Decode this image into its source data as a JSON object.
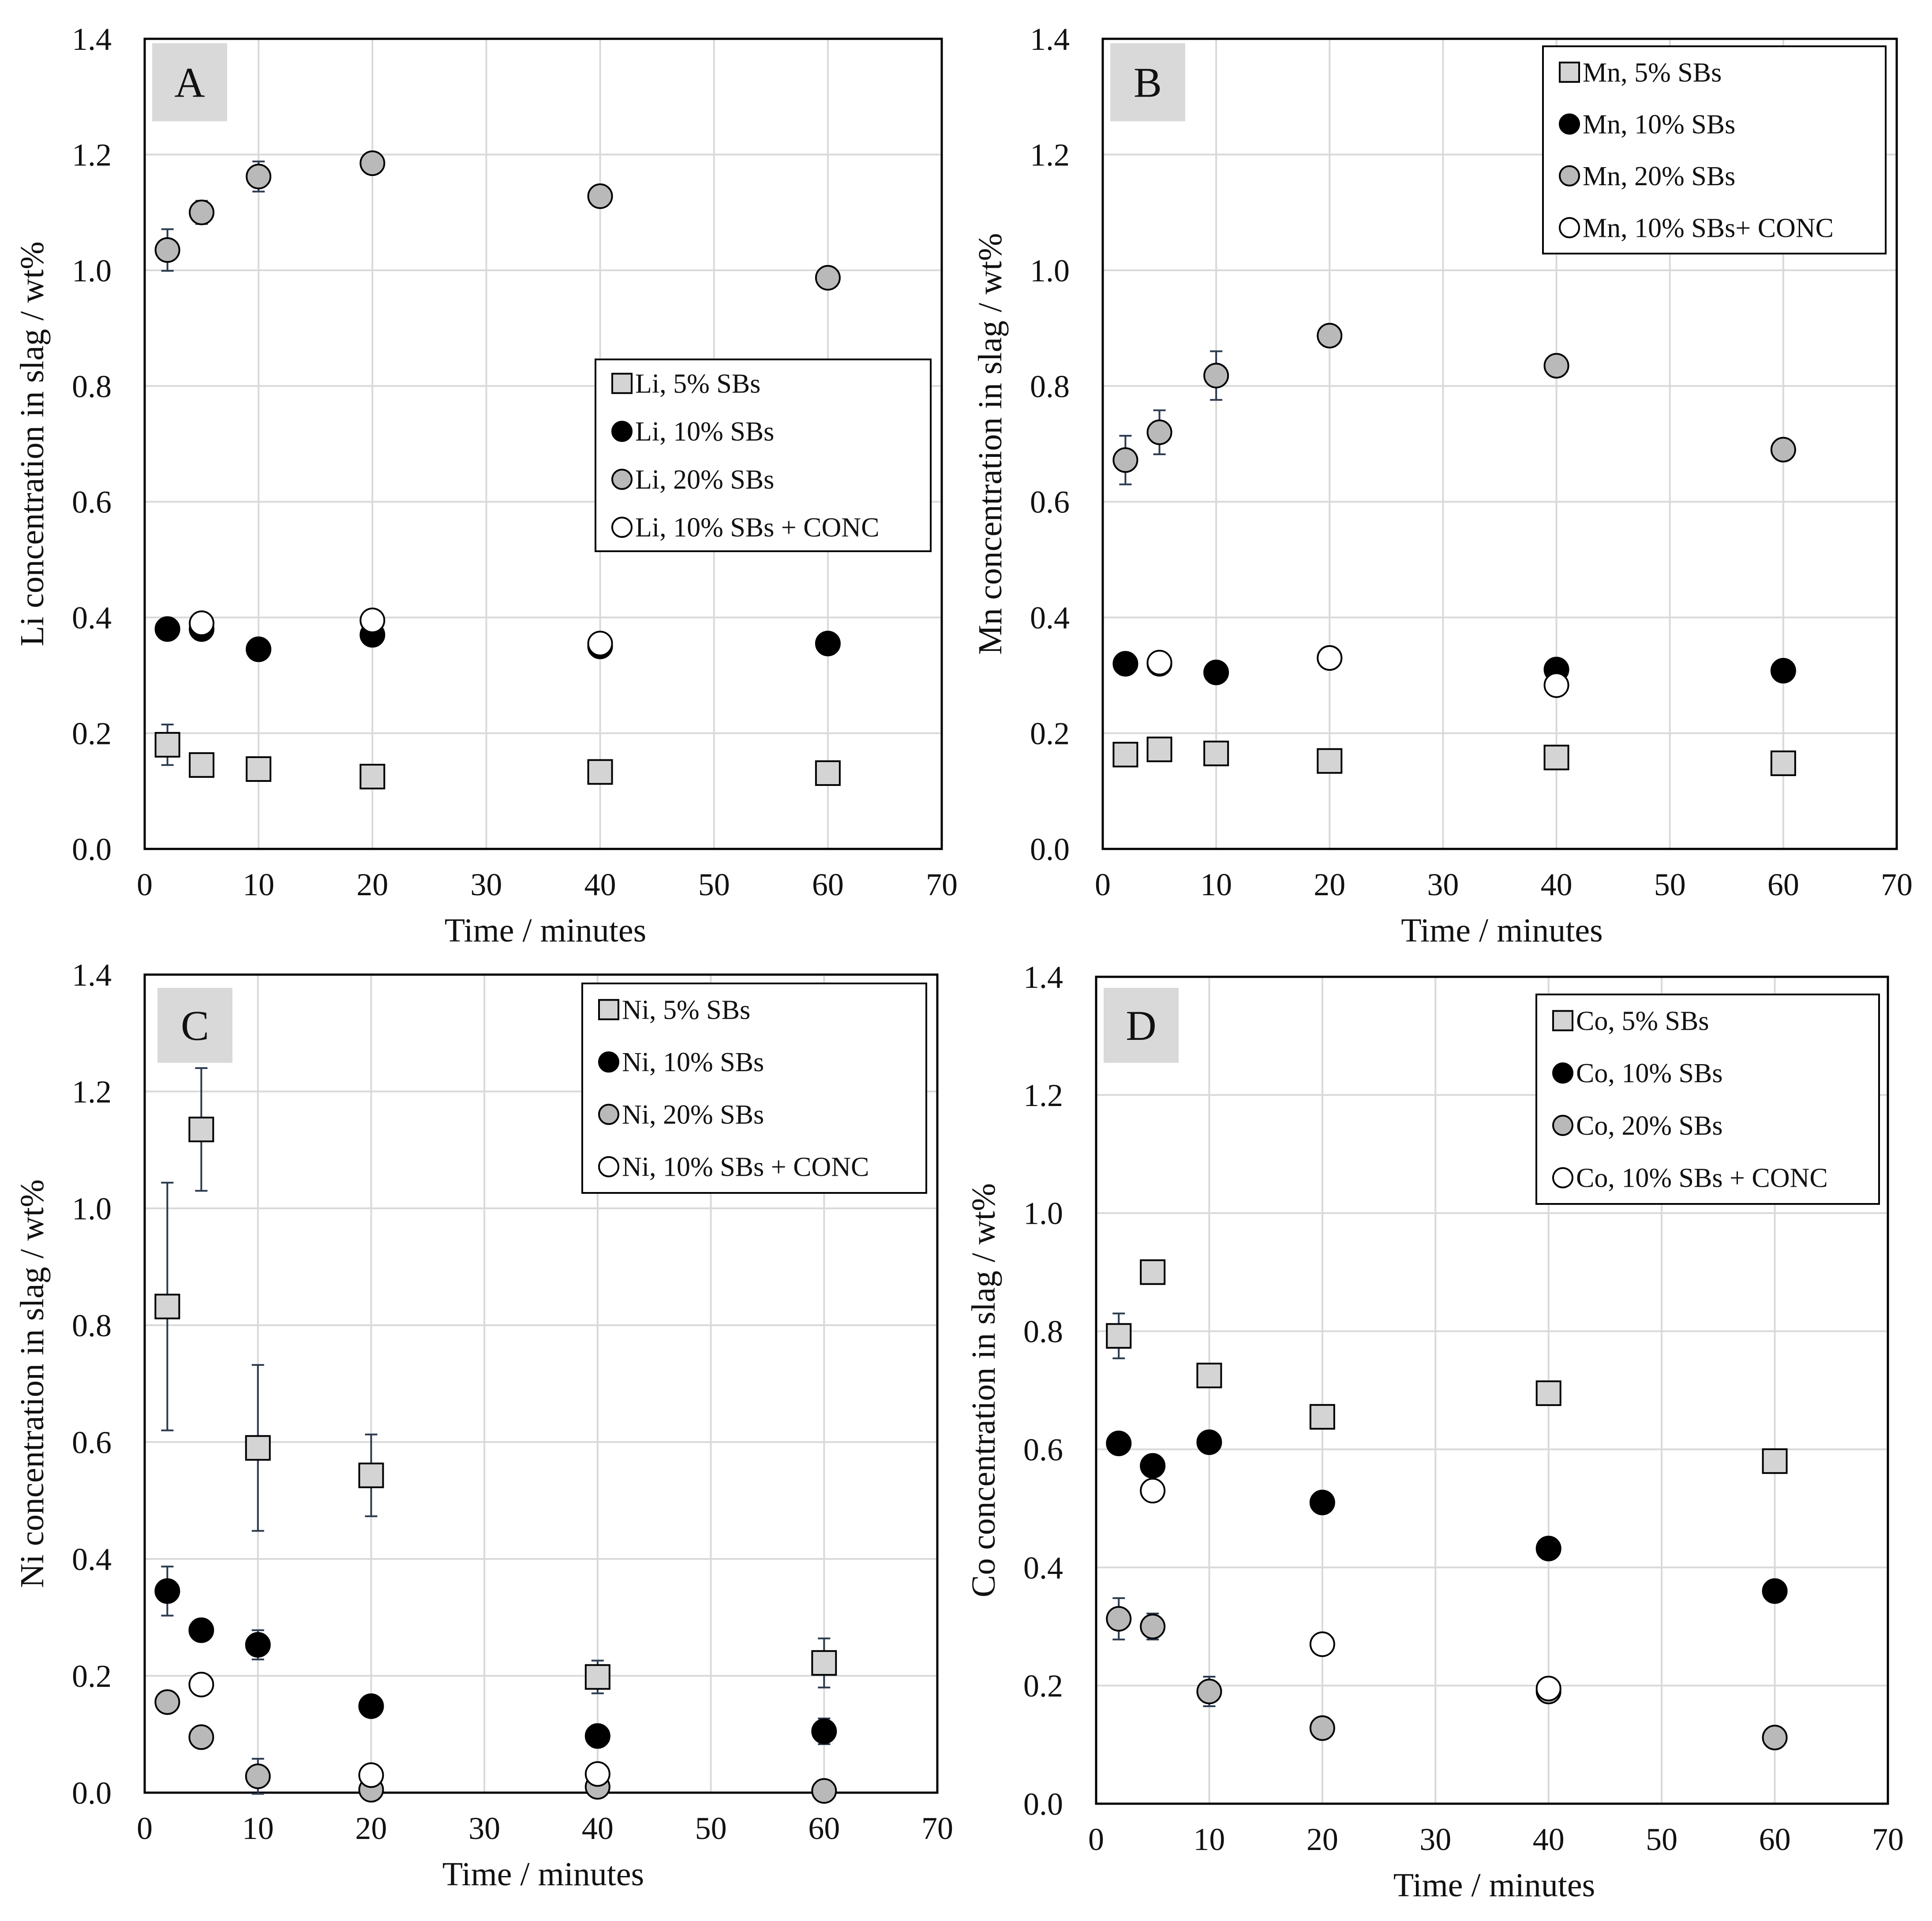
{
  "figure": {
    "colors": {
      "square_fill": "#d4d4d4",
      "filled_circle": "#000000",
      "gray_circle": "#b9b9b9",
      "open_circle": "#ffffff",
      "grid": "#d9d9d9",
      "error_bar": "#2b3a4e",
      "panel_letter_bg": "#d9d9d9"
    }
  },
  "chart_data": [
    {
      "panel": "A",
      "type": "scatter",
      "xlabel": "Time / minutes",
      "ylabel": "Li concentration in slag / wt%",
      "xlim": [
        0,
        70
      ],
      "ylim": [
        0,
        1.4
      ],
      "xticks": [
        "0",
        "10",
        "20",
        "30",
        "40",
        "50",
        "60",
        "70"
      ],
      "yticks": [
        "0.0",
        "0.2",
        "0.4",
        "0.6",
        "0.8",
        "1.0",
        "1.2",
        "1.4"
      ],
      "legend_position": "middle-right",
      "series": [
        {
          "name": "Li, 5% SBs",
          "marker": "square",
          "x": [
            2,
            5,
            10,
            20,
            40,
            60
          ],
          "y": [
            0.18,
            0.145,
            0.138,
            0.125,
            0.133,
            0.131
          ],
          "err": [
            0.035,
            0.01,
            0.01,
            0.008,
            0.008,
            0.008
          ]
        },
        {
          "name": "Li, 10% SBs",
          "marker": "filled",
          "x": [
            2,
            5,
            10,
            20,
            40,
            60
          ],
          "y": [
            0.38,
            0.38,
            0.345,
            0.37,
            0.35,
            0.355
          ],
          "err": [
            0,
            0,
            0,
            0,
            0,
            0
          ]
        },
        {
          "name": "Li, 20% SBs",
          "marker": "gray",
          "x": [
            2,
            5,
            10,
            20,
            40,
            60
          ],
          "y": [
            1.035,
            1.1,
            1.162,
            1.185,
            1.128,
            0.987
          ],
          "err": [
            0.036,
            0.02,
            0.026,
            0.01,
            0.017,
            0.005
          ]
        },
        {
          "name": "Li, 10% SBs + CONC",
          "marker": "open",
          "x": [
            5,
            20,
            40
          ],
          "y": [
            0.39,
            0.395,
            0.355
          ],
          "err": [
            0,
            0,
            0
          ]
        }
      ]
    },
    {
      "panel": "B",
      "type": "scatter",
      "xlabel": "Time / minutes",
      "ylabel": "Mn concentration in slag / wt%",
      "xlim": [
        0,
        70
      ],
      "ylim": [
        0,
        1.4
      ],
      "xticks": [
        "0",
        "10",
        "20",
        "30",
        "40",
        "50",
        "60",
        "70"
      ],
      "yticks": [
        "0.0",
        "0.2",
        "0.4",
        "0.6",
        "0.8",
        "1.0",
        "1.2",
        "1.4"
      ],
      "legend_position": "top-right",
      "series": [
        {
          "name": "Mn, 5% SBs",
          "marker": "square",
          "x": [
            2,
            5,
            10,
            20,
            40,
            60
          ],
          "y": [
            0.163,
            0.172,
            0.165,
            0.152,
            0.158,
            0.148
          ],
          "err": [
            0,
            0,
            0,
            0,
            0,
            0
          ]
        },
        {
          "name": "Mn, 10% SBs",
          "marker": "filled",
          "x": [
            2,
            5,
            10,
            20,
            40,
            60
          ],
          "y": [
            0.32,
            0.32,
            0.305,
            0.33,
            0.31,
            0.308
          ],
          "err": [
            0,
            0,
            0,
            0,
            0,
            0
          ]
        },
        {
          "name": "Mn, 20% SBs",
          "marker": "gray",
          "x": [
            2,
            5,
            10,
            20,
            40,
            60
          ],
          "y": [
            0.672,
            0.72,
            0.818,
            0.887,
            0.835,
            0.69
          ],
          "err": [
            0.042,
            0.038,
            0.042,
            0.016,
            0.007,
            0.007
          ]
        },
        {
          "name": "Mn, 10% SBs+ CONC",
          "marker": "open",
          "x": [
            5,
            20,
            40
          ],
          "y": [
            0.322,
            0.33,
            0.283
          ],
          "err": [
            0,
            0,
            0
          ]
        }
      ]
    },
    {
      "panel": "C",
      "type": "scatter",
      "xlabel": "Time / minutes",
      "ylabel": "Ni concentration in slag / wt%",
      "xlim": [
        0,
        70
      ],
      "ylim": [
        0,
        1.4
      ],
      "xticks": [
        "0",
        "10",
        "20",
        "30",
        "40",
        "50",
        "60",
        "70"
      ],
      "yticks": [
        "0.0",
        "0.2",
        "0.4",
        "0.6",
        "0.8",
        "1.0",
        "1.2",
        "1.4"
      ],
      "legend_position": "top-right",
      "series": [
        {
          "name": "Ni, 5% SBs",
          "marker": "square",
          "x": [
            2,
            5,
            10,
            20,
            40,
            60
          ],
          "y": [
            0.832,
            1.135,
            0.59,
            0.543,
            0.198,
            0.222
          ],
          "err": [
            0.212,
            0.105,
            0.142,
            0.07,
            0.028,
            0.042
          ]
        },
        {
          "name": "Ni, 10% SBs",
          "marker": "filled",
          "x": [
            2,
            5,
            10,
            20,
            40,
            60
          ],
          "y": [
            0.345,
            0.278,
            0.253,
            0.148,
            0.097,
            0.105
          ],
          "err": [
            0.042,
            0,
            0.025,
            0,
            0,
            0.022
          ]
        },
        {
          "name": "Ni, 20% SBs",
          "marker": "gray",
          "x": [
            2,
            5,
            10,
            20,
            40,
            60
          ],
          "y": [
            0.155,
            0.095,
            0.028,
            0.005,
            0.01,
            0.003
          ],
          "err": [
            0,
            0,
            0.03,
            0,
            0,
            0
          ]
        },
        {
          "name": "Ni, 10% SBs + CONC",
          "marker": "open",
          "x": [
            5,
            20,
            40
          ],
          "y": [
            0.185,
            0.03,
            0.032
          ],
          "err": [
            0,
            0,
            0
          ]
        }
      ]
    },
    {
      "panel": "D",
      "type": "scatter",
      "xlabel": "Time / minutes",
      "ylabel": "Co concentration in slag / wt%",
      "xlim": [
        0,
        70
      ],
      "ylim": [
        0,
        1.4
      ],
      "xticks": [
        "0",
        "10",
        "20",
        "30",
        "40",
        "50",
        "60",
        "70"
      ],
      "yticks": [
        "0.0",
        "0.2",
        "0.4",
        "0.6",
        "0.8",
        "1.0",
        "1.2",
        "1.4"
      ],
      "legend_position": "top-right",
      "series": [
        {
          "name": "Co, 5% SBs",
          "marker": "square",
          "x": [
            2,
            5,
            10,
            20,
            40,
            60
          ],
          "y": [
            0.792,
            0.9,
            0.725,
            0.655,
            0.695,
            0.58
          ],
          "err": [
            0.038,
            0,
            0,
            0,
            0,
            0
          ]
        },
        {
          "name": "Co, 10% SBs",
          "marker": "filled",
          "x": [
            2,
            5,
            10,
            20,
            40,
            60
          ],
          "y": [
            0.61,
            0.572,
            0.612,
            0.51,
            0.432,
            0.36
          ],
          "err": [
            0,
            0,
            0,
            0,
            0,
            0
          ]
        },
        {
          "name": "Co, 20% SBs",
          "marker": "gray",
          "x": [
            2,
            5,
            10,
            20,
            40,
            60
          ],
          "y": [
            0.313,
            0.3,
            0.19,
            0.128,
            0.19,
            0.112
          ],
          "err": [
            0.035,
            0.022,
            0.025,
            0.01,
            0,
            0
          ]
        },
        {
          "name": "Co, 10% SBs + CONC",
          "marker": "open",
          "x": [
            5,
            20,
            40
          ],
          "y": [
            0.53,
            0.27,
            0.195
          ],
          "err": [
            0,
            0,
            0
          ]
        }
      ]
    }
  ]
}
